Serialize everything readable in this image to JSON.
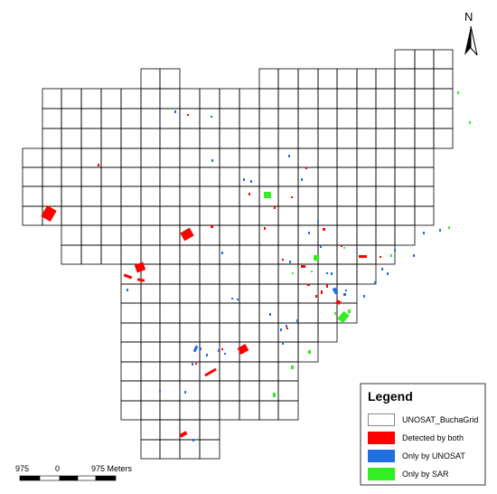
{
  "north": {
    "label": "N"
  },
  "legend": {
    "title": "Legend",
    "items": [
      {
        "label": "UNOSAT_BuchaGrid",
        "color": "#ffffff",
        "border": "#888888"
      },
      {
        "label": "Detected by both",
        "color": "#ff0000"
      },
      {
        "label": "Only by UNOSAT",
        "color": "#1f6fe0"
      },
      {
        "label": "Only by SAR",
        "color": "#33ee22"
      }
    ]
  },
  "scale_bar": {
    "left_label": "975",
    "zero_label": "0",
    "right_label": "975 Meters"
  },
  "colors": {
    "both": "#ff0000",
    "unosat": "#1f6fe0",
    "sar": "#33ee22",
    "grid": "#000000"
  }
}
